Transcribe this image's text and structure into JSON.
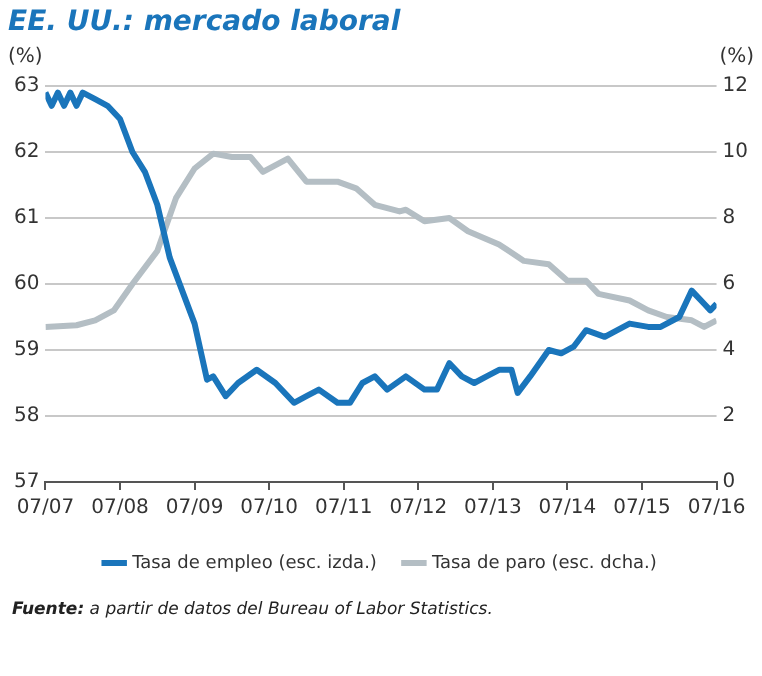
{
  "chart_data": {
    "type": "line",
    "title": "EE. UU.: mercado laboral",
    "ylabel": "(%)",
    "y2label": "(%)",
    "annotations": [
      "Fuente: a partir de datos del Bureau of Labor Statistics."
    ],
    "series": [
      {
        "name": "Tasa de empleo (esc. izda.)",
        "color": "#1a75bb",
        "x": [
          "2007-07",
          "2007-08",
          "2007-09",
          "2007-10",
          "2007-11",
          "2007-12",
          "2008-01",
          "2008-03",
          "2008-05",
          "2008-07",
          "2008-09",
          "2008-11",
          "2009-01",
          "2009-03",
          "2009-05",
          "2009-07",
          "2009-09",
          "2009-10",
          "2009-12",
          "2010-02",
          "2010-05",
          "2010-08",
          "2010-11",
          "2011-01",
          "2011-03",
          "2011-06",
          "2011-08",
          "2011-10",
          "2011-12",
          "2012-02",
          "2012-05",
          "2012-08",
          "2012-10",
          "2012-12",
          "2013-02",
          "2013-04",
          "2013-06",
          "2013-08",
          "2013-10",
          "2013-11",
          "2014-01",
          "2014-04",
          "2014-06",
          "2014-08",
          "2014-10",
          "2015-01",
          "2015-05",
          "2015-08",
          "2015-10",
          "2016-01",
          "2016-03",
          "2016-05",
          "2016-06",
          "2016-07"
        ],
        "values": [
          62.9,
          62.7,
          62.9,
          62.7,
          62.9,
          62.7,
          62.9,
          62.8,
          62.7,
          62.5,
          62.0,
          61.7,
          61.2,
          60.4,
          59.9,
          59.4,
          58.55,
          58.6,
          58.3,
          58.5,
          58.7,
          58.5,
          58.2,
          58.3,
          58.4,
          58.2,
          58.2,
          58.5,
          58.6,
          58.4,
          58.6,
          58.4,
          58.4,
          58.8,
          58.6,
          58.5,
          58.6,
          58.7,
          58.7,
          58.35,
          58.6,
          59.0,
          58.95,
          59.05,
          59.3,
          59.2,
          59.4,
          59.35,
          59.35,
          59.5,
          59.9,
          59.7,
          59.6,
          59.7
        ]
      },
      {
        "name": "Tasa de paro (esc. dcha.)",
        "color": "#b4bec4",
        "axis": "y2",
        "x": [
          "2007-07",
          "2007-12",
          "2008-03",
          "2008-06",
          "2008-09",
          "2009-01",
          "2009-04",
          "2009-07",
          "2009-10",
          "2010-01",
          "2010-04",
          "2010-06",
          "2010-10",
          "2011-01",
          "2011-06",
          "2011-09",
          "2011-12",
          "2012-04",
          "2012-05",
          "2012-08",
          "2012-12",
          "2013-03",
          "2013-08",
          "2013-12",
          "2014-04",
          "2014-07",
          "2014-10",
          "2014-12",
          "2015-05",
          "2015-08",
          "2015-11",
          "2016-03",
          "2016-05",
          "2016-07"
        ],
        "values": [
          4.7,
          4.75,
          4.9,
          5.2,
          6.0,
          7.0,
          8.6,
          9.5,
          9.95,
          9.85,
          9.85,
          9.4,
          9.8,
          9.1,
          9.1,
          8.9,
          8.4,
          8.2,
          8.25,
          7.9,
          8.0,
          7.6,
          7.2,
          6.7,
          6.6,
          6.1,
          6.1,
          5.7,
          5.5,
          5.2,
          5.0,
          4.9,
          4.7,
          4.9
        ]
      }
    ],
    "xlim": [
      "2007-07",
      "2016-07"
    ],
    "xticks": [
      {
        "value": "2007-07",
        "label": "07/07"
      },
      {
        "value": "2008-07",
        "label": "07/08"
      },
      {
        "value": "2009-07",
        "label": "07/09"
      },
      {
        "value": "2010-07",
        "label": "07/10"
      },
      {
        "value": "2011-07",
        "label": "07/11"
      },
      {
        "value": "2012-07",
        "label": "07/12"
      },
      {
        "value": "2013-07",
        "label": "07/13"
      },
      {
        "value": "2014-07",
        "label": "07/14"
      },
      {
        "value": "2015-07",
        "label": "07/15"
      },
      {
        "value": "2016-07",
        "label": "07/16"
      }
    ],
    "ylim": [
      57,
      63
    ],
    "yticks": [
      57,
      58,
      59,
      60,
      61,
      62,
      63
    ],
    "y2lim": [
      0,
      12
    ],
    "y2ticks": [
      0,
      2,
      4,
      6,
      8,
      10,
      12
    ],
    "grid": "y",
    "legend": "bottom",
    "marker": "none",
    "line_style": "solid"
  }
}
